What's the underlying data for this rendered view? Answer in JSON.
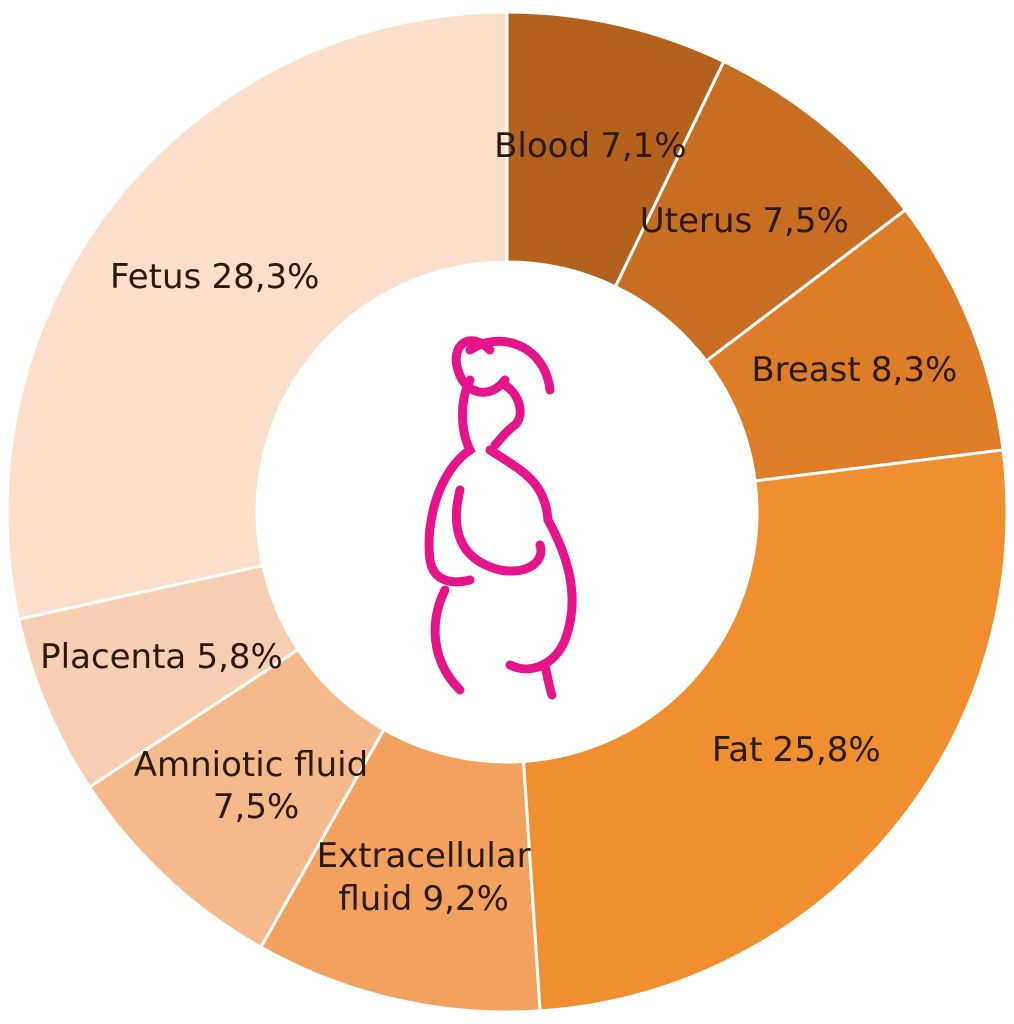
{
  "chart_data": {
    "type": "donut",
    "categories": [
      "Blood",
      "Uterus",
      "Breast",
      "Fat",
      "Extracellular fluid",
      "Amniotic fluid",
      "Placenta",
      "Fetus"
    ],
    "values": [
      7.1,
      7.5,
      8.3,
      25.8,
      9.2,
      7.5,
      5.8,
      28.3
    ],
    "value_labels": [
      "7,1%",
      "7,5%",
      "8,3%",
      "25,8%",
      "9,2%",
      "7,5%",
      "5,8%",
      "28,3%"
    ],
    "colors": [
      "#b5611e",
      "#c86e22",
      "#de7d27",
      "#ef8f30",
      "#f2a25e",
      "#f5b98c",
      "#f8cfb2",
      "#fbdfca"
    ]
  }
}
